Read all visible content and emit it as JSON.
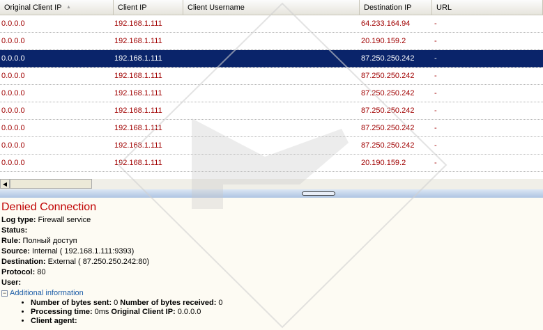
{
  "table": {
    "columns": [
      "Original Client IP",
      "Client IP",
      "Client Username",
      "Destination IP",
      "URL"
    ],
    "rows": [
      {
        "original_client_ip": "0.0.0.0",
        "client_ip": "192.168.1.111",
        "destination_ip": "64.233.164.94",
        "url": "-"
      },
      {
        "original_client_ip": "0.0.0.0",
        "client_ip": "192.168.1.111",
        "destination_ip": "20.190.159.2",
        "url": "-"
      },
      {
        "original_client_ip": "0.0.0.0",
        "client_ip": "192.168.1.111",
        "destination_ip": "87.250.250.242",
        "url": "-"
      },
      {
        "original_client_ip": "0.0.0.0",
        "client_ip": "192.168.1.111",
        "destination_ip": "87.250.250.242",
        "url": "-"
      },
      {
        "original_client_ip": "0.0.0.0",
        "client_ip": "192.168.1.111",
        "destination_ip": "87.250.250.242",
        "url": "-"
      },
      {
        "original_client_ip": "0.0.0.0",
        "client_ip": "192.168.1.111",
        "destination_ip": "87.250.250.242",
        "url": "-"
      },
      {
        "original_client_ip": "0.0.0.0",
        "client_ip": "192.168.1.111",
        "destination_ip": "87.250.250.242",
        "url": "-"
      },
      {
        "original_client_ip": "0.0.0.0",
        "client_ip": "192.168.1.111",
        "destination_ip": "87.250.250.242",
        "url": "-"
      },
      {
        "original_client_ip": "0.0.0.0",
        "client_ip": "192.168.1.111",
        "destination_ip": "20.190.159.2",
        "url": "-"
      }
    ],
    "selected_row": 2
  },
  "details": {
    "title": "Denied Connection",
    "fields": [
      {
        "label": "Log type:",
        "value": "Firewall service"
      },
      {
        "label": "Status:"
      },
      {
        "label": "Rule:",
        "value": "Полный доступ"
      },
      {
        "label": "Source:",
        "value": "Internal ( 192.168.1.111:9393)"
      },
      {
        "label": "Destination:",
        "value": "External ( 87.250.250.242:80)"
      },
      {
        "label": "Protocol:",
        "value": "80"
      },
      {
        "label": "User:"
      }
    ],
    "additional": {
      "label": "Additional information",
      "items": [
        [
          {
            "label": "Number of bytes sent:",
            "value": "0"
          },
          {
            "label": "Number of bytes received:",
            "value": "0"
          }
        ],
        [
          {
            "label": "Processing time:",
            "value": "0ms"
          },
          {
            "label": "Original Client IP:",
            "value": "0.0.0.0"
          }
        ],
        [
          {
            "label": "Client agent:"
          }
        ]
      ]
    }
  }
}
